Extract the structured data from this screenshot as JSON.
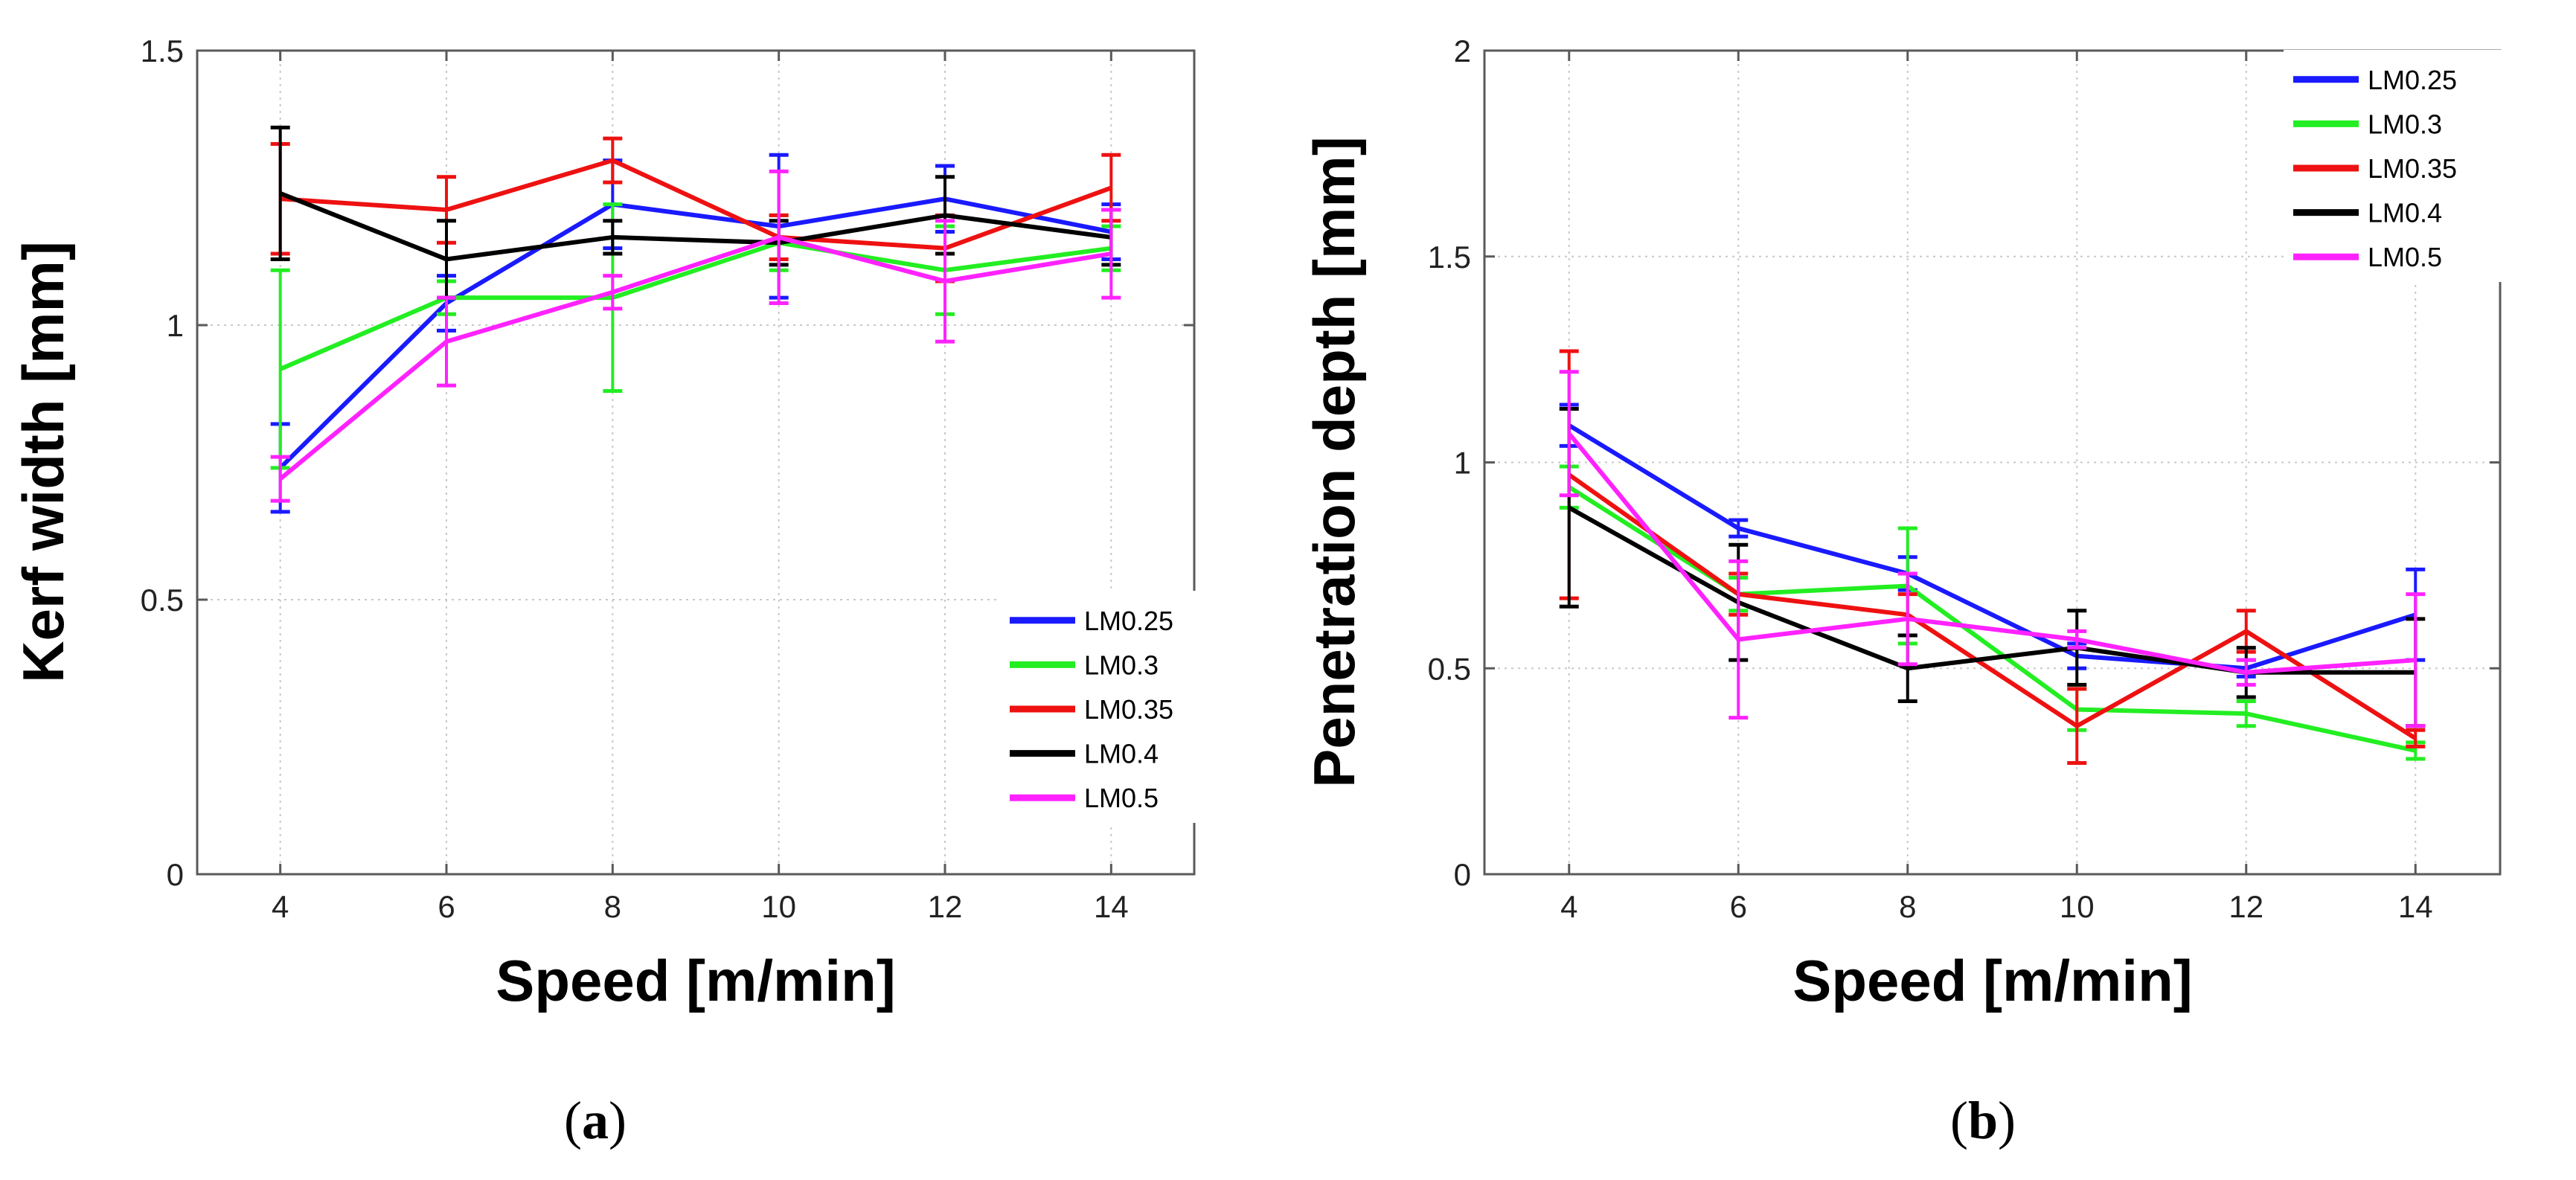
{
  "colors": {
    "LM0.25": "#1a1aff",
    "LM0.3": "#22ee22",
    "LM0.35": "#ee1111",
    "LM0.4": "#000000",
    "LM0.5": "#ff22ff"
  },
  "chart_data": [
    {
      "type": "line",
      "panel_label": "a",
      "xlabel": "Speed [m/min]",
      "ylabel": "Kerf width [mm]",
      "x": [
        4,
        6,
        8,
        10,
        12,
        14
      ],
      "xlim": [
        3,
        15
      ],
      "ylim": [
        0,
        1.5
      ],
      "xticks": [
        "4",
        "6",
        "8",
        "10",
        "12",
        "14"
      ],
      "yticks": [
        0,
        0.5,
        1,
        1.5
      ],
      "ytick_labels": [
        "0",
        "0.5",
        "1",
        "1.5"
      ],
      "grid": true,
      "legend_position": "bottom-right",
      "series": [
        {
          "name": "LM0.25",
          "values": [
            0.74,
            1.04,
            1.22,
            1.18,
            1.23,
            1.17
          ],
          "err": [
            0.08,
            0.05,
            0.08,
            0.13,
            0.06,
            0.05
          ]
        },
        {
          "name": "LM0.3",
          "values": [
            0.92,
            1.05,
            1.05,
            1.15,
            1.1,
            1.14
          ],
          "err": [
            0.18,
            0.03,
            0.17,
            0.05,
            0.08,
            0.04
          ]
        },
        {
          "name": "LM0.35",
          "values": [
            1.23,
            1.21,
            1.3,
            1.16,
            1.14,
            1.25
          ],
          "err": [
            0.1,
            0.06,
            0.04,
            0.04,
            0.06,
            0.06
          ]
        },
        {
          "name": "LM0.4",
          "values": [
            1.24,
            1.12,
            1.16,
            1.15,
            1.2,
            1.16
          ],
          "err": [
            0.12,
            0.07,
            0.03,
            0.04,
            0.07,
            0.05
          ]
        },
        {
          "name": "LM0.5",
          "values": [
            0.72,
            0.97,
            1.06,
            1.16,
            1.08,
            1.13
          ],
          "err": [
            0.04,
            0.08,
            0.03,
            0.12,
            0.11,
            0.08
          ]
        }
      ]
    },
    {
      "type": "line",
      "panel_label": "b",
      "xlabel": "Speed [m/min]",
      "ylabel": "Penetration depth [mm]",
      "x": [
        4,
        6,
        8,
        10,
        12,
        14
      ],
      "xlim": [
        3,
        15
      ],
      "ylim": [
        0,
        2
      ],
      "xticks": [
        "4",
        "6",
        "8",
        "10",
        "12",
        "14"
      ],
      "yticks": [
        0,
        0.5,
        1,
        1.5,
        2
      ],
      "ytick_labels": [
        "0",
        "0.5",
        "1",
        "1.5",
        "2"
      ],
      "grid": true,
      "legend_position": "top-right",
      "series": [
        {
          "name": "LM0.25",
          "values": [
            1.09,
            0.84,
            0.73,
            0.53,
            0.5,
            0.63
          ],
          "err": [
            0.05,
            0.02,
            0.04,
            0.03,
            0.02,
            0.11
          ]
        },
        {
          "name": "LM0.3",
          "values": [
            0.94,
            0.68,
            0.7,
            0.4,
            0.39,
            0.3
          ],
          "err": [
            0.05,
            0.04,
            0.14,
            0.05,
            0.03,
            0.02
          ]
        },
        {
          "name": "LM0.35",
          "values": [
            0.97,
            0.68,
            0.63,
            0.36,
            0.59,
            0.33
          ],
          "err": [
            0.3,
            0.05,
            0.05,
            0.09,
            0.05,
            0.02
          ]
        },
        {
          "name": "LM0.4",
          "values": [
            0.89,
            0.66,
            0.5,
            0.55,
            0.49,
            0.49
          ],
          "err": [
            0.24,
            0.14,
            0.08,
            0.09,
            0.06,
            0.13
          ]
        },
        {
          "name": "LM0.5",
          "values": [
            1.07,
            0.57,
            0.62,
            0.57,
            0.49,
            0.52
          ],
          "err": [
            0.15,
            0.19,
            0.11,
            0.02,
            0.03,
            0.16
          ]
        }
      ]
    }
  ]
}
